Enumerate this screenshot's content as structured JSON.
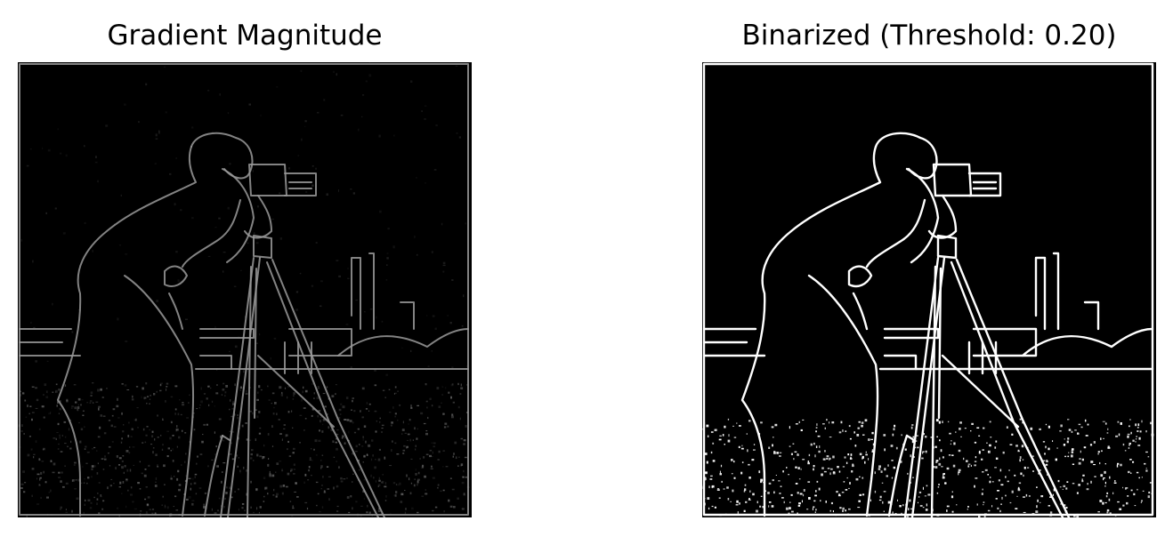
{
  "figure": {
    "panels": [
      {
        "title": "Gradient Magnitude",
        "image_semantic": "grayscale edge-magnitude map of cameraman photo",
        "edge_color": "#9a9a9a",
        "background_color": "#000000"
      },
      {
        "title": "Binarized (Threshold: 0.20)",
        "image_semantic": "binary edge map of cameraman photo",
        "edge_color": "#ffffff",
        "background_color": "#000000"
      }
    ]
  }
}
